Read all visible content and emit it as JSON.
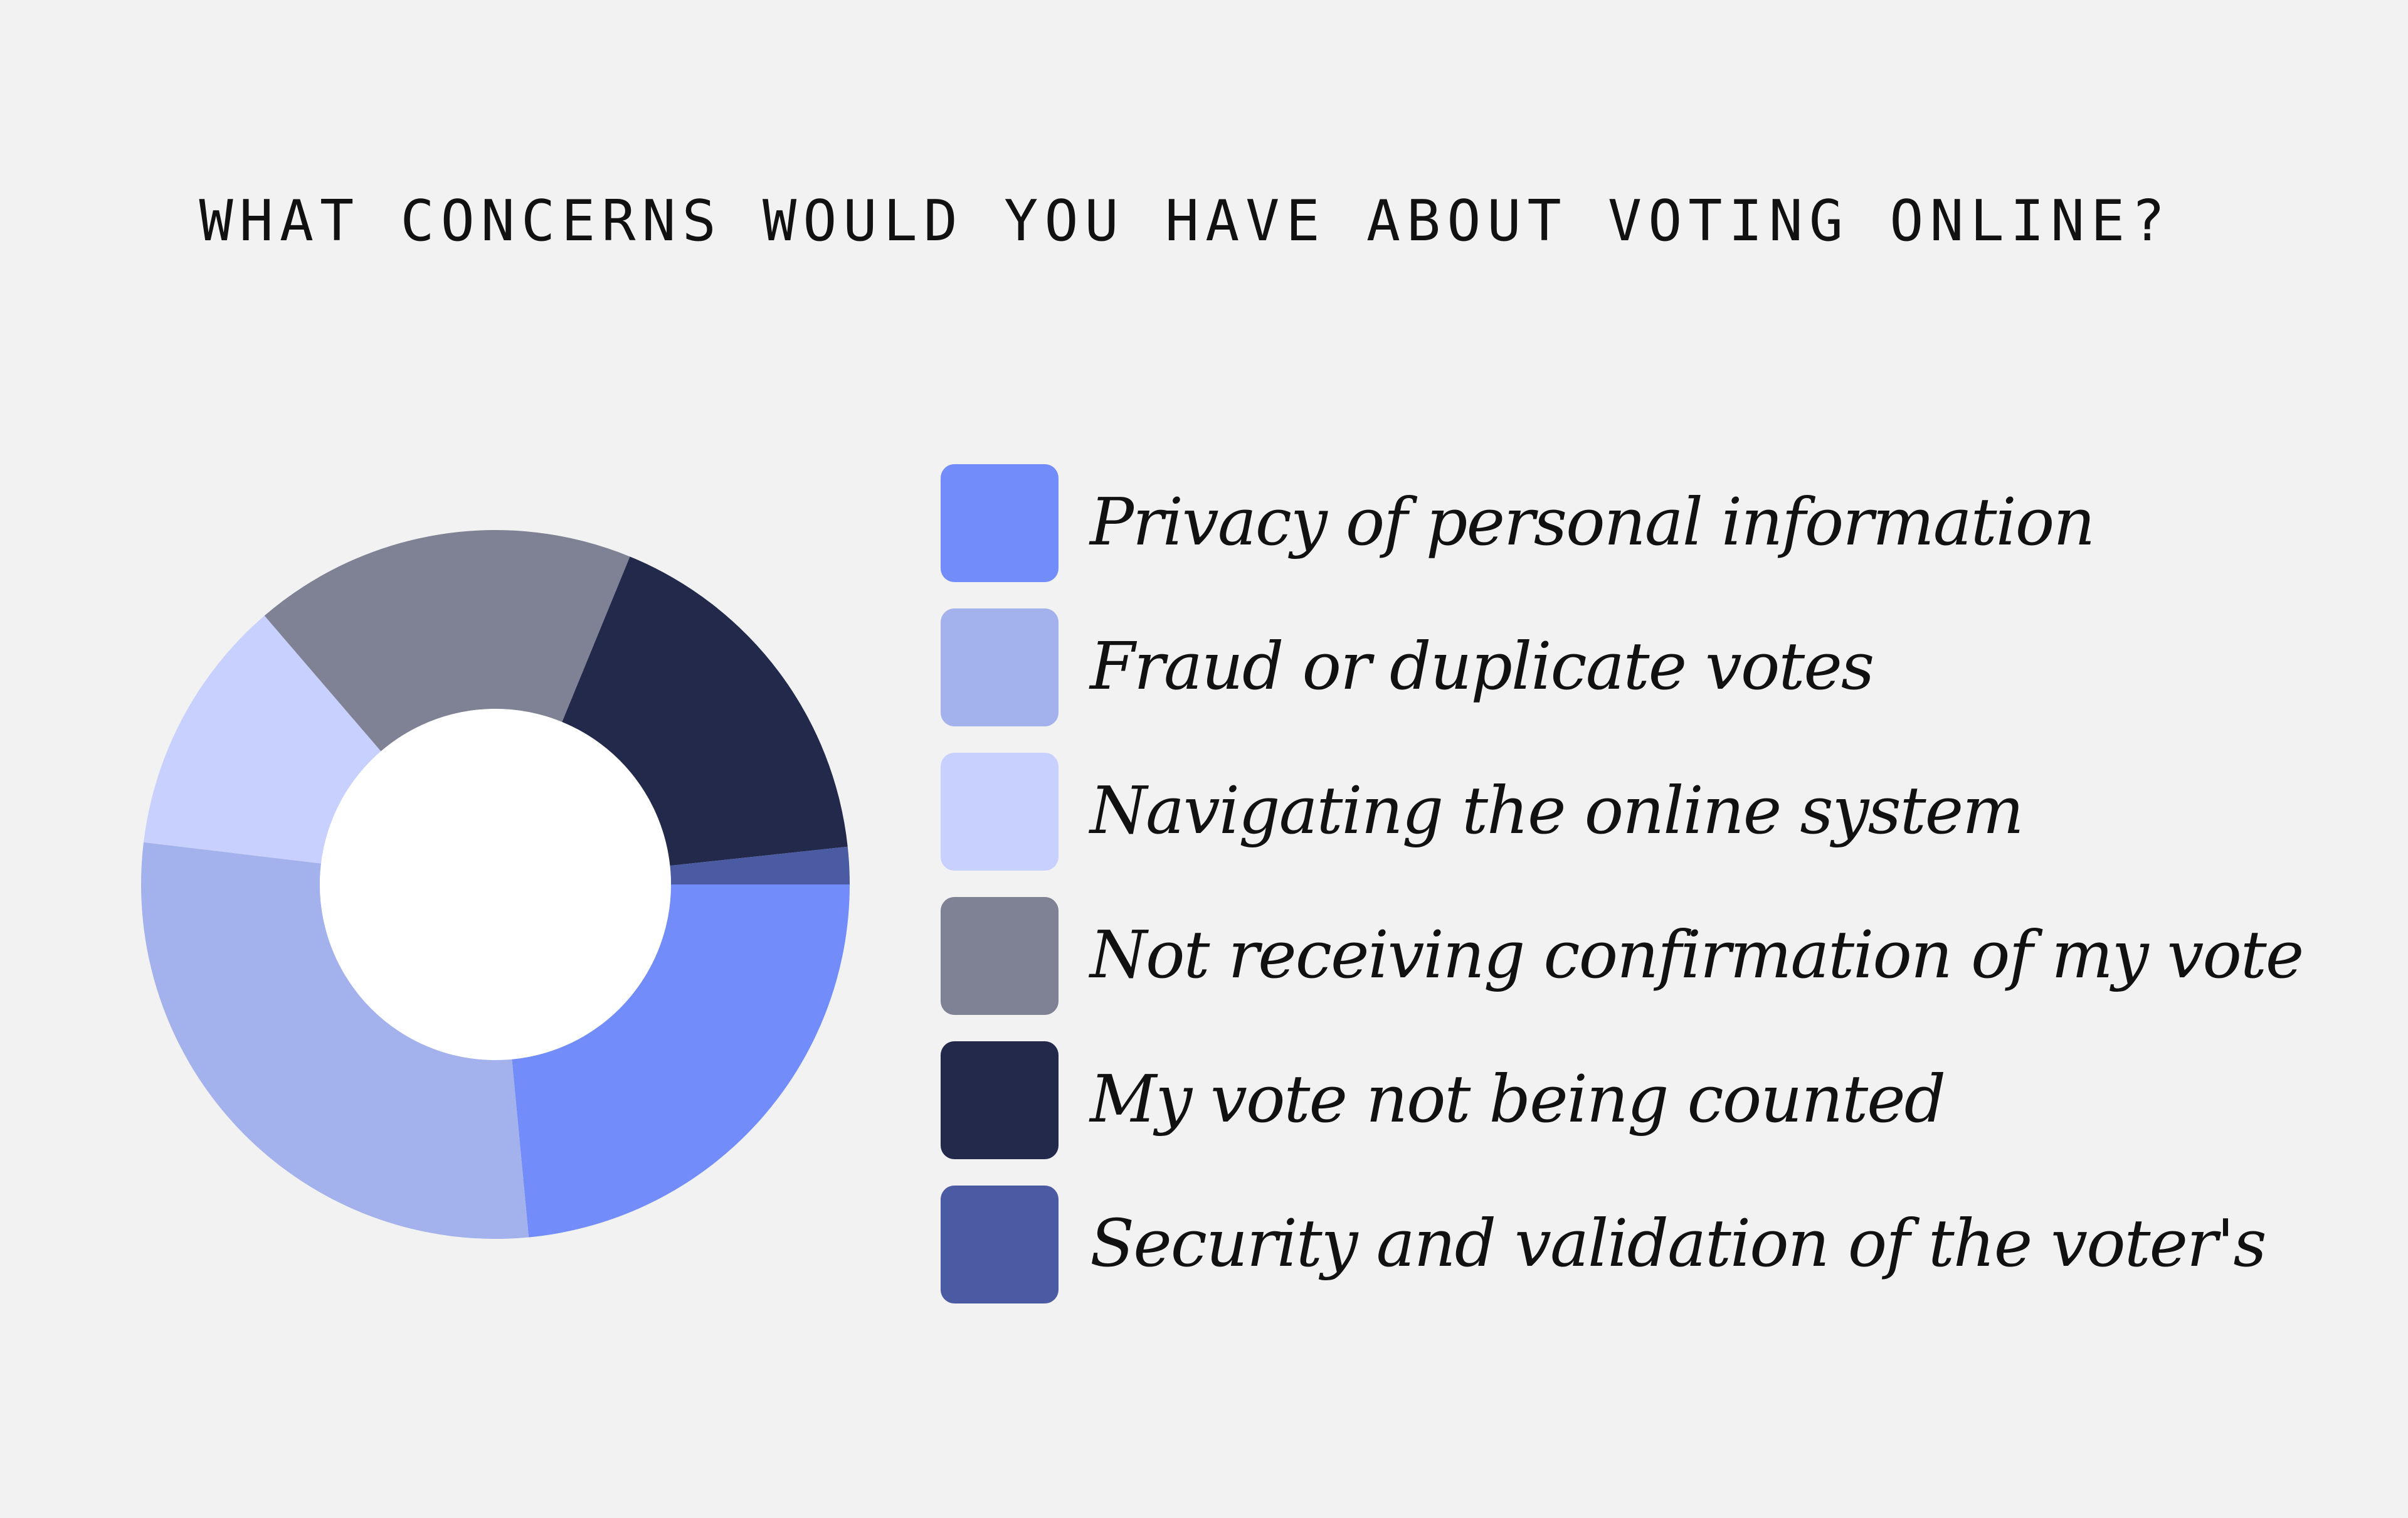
{
  "chart_data": {
    "type": "pie",
    "title": "WHAT CONCERNS WOULD YOU HAVE ABOUT VOTING ONLINE?",
    "categories": [
      "Privacy of personal information",
      "Fraud or duplicate votes",
      "Navigating the online system",
      "Not receiving confirmation of my vote",
      "My vote not being counted",
      "Security and validation of the voter's"
    ],
    "values": [
      23.5,
      28.4,
      11.8,
      17.5,
      17.1,
      1.7
    ],
    "colors": [
      "#728cfa",
      "#a3b1ec",
      "#c8d1fd",
      "#7f8194",
      "#22294b",
      "#4a5aa3"
    ],
    "legend_placement": "right",
    "hole_color": "#ffffff"
  }
}
